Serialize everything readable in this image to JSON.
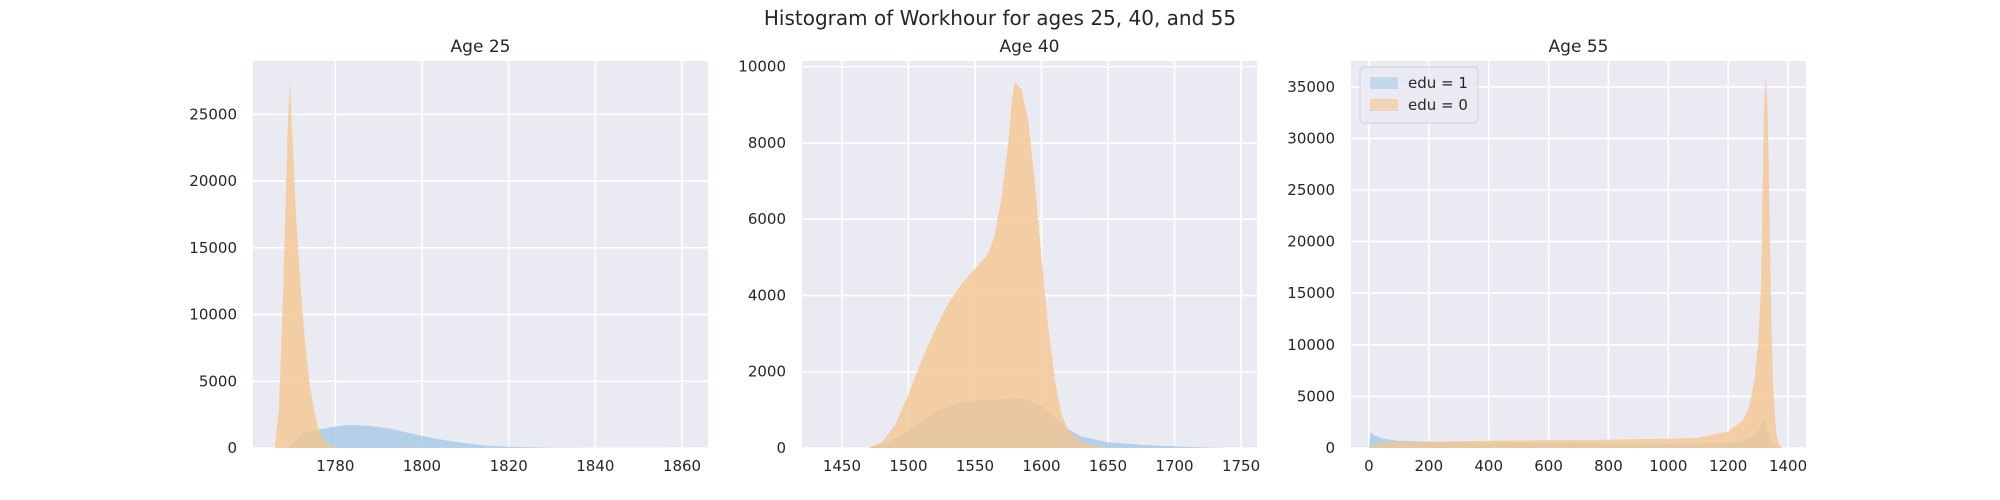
{
  "figure": {
    "title": "Histogram of Workhour for ages 25, 40, and 55"
  },
  "colors": {
    "background": "#eaeaf2",
    "grid": "#ffffff",
    "edu1": "#a9cbe6",
    "edu0": "#f5c58e"
  },
  "chart_data": [
    {
      "type": "area",
      "title": "Age 25",
      "xlabel": "",
      "ylabel": "",
      "xlim": [
        1761,
        1866
      ],
      "ylim": [
        0,
        29000
      ],
      "xticks": [
        1780,
        1800,
        1820,
        1840,
        1860
      ],
      "yticks": [
        0,
        5000,
        10000,
        15000,
        20000,
        25000
      ],
      "grid": true,
      "series": [
        {
          "name": "edu = 1",
          "x": [
            1769,
            1770,
            1771,
            1772,
            1773,
            1775,
            1778,
            1780,
            1782,
            1785,
            1788,
            1792,
            1796,
            1800,
            1805,
            1810,
            1815,
            1820,
            1830,
            1840,
            1850,
            1860
          ],
          "values": [
            0,
            200,
            600,
            1000,
            1200,
            1300,
            1500,
            1600,
            1700,
            1700,
            1650,
            1500,
            1200,
            900,
            600,
            350,
            180,
            90,
            30,
            10,
            5,
            0
          ]
        },
        {
          "name": "edu = 0",
          "x": [
            1766,
            1767,
            1768,
            1769,
            1769.5,
            1770,
            1771,
            1772,
            1773,
            1774,
            1775,
            1776,
            1777,
            1778,
            1780,
            1782
          ],
          "values": [
            0,
            3000,
            12000,
            24000,
            27500,
            24000,
            17000,
            12000,
            8000,
            5000,
            3000,
            1600,
            800,
            300,
            60,
            0
          ]
        }
      ]
    },
    {
      "type": "area",
      "title": "Age 40",
      "xlabel": "",
      "ylabel": "",
      "xlim": [
        1420,
        1762
      ],
      "ylim": [
        0,
        10150
      ],
      "xticks": [
        1450,
        1500,
        1550,
        1600,
        1650,
        1700,
        1750
      ],
      "yticks": [
        0,
        2000,
        4000,
        6000,
        8000,
        10000
      ],
      "grid": true,
      "series": [
        {
          "name": "edu = 1",
          "x": [
            1470,
            1485,
            1500,
            1510,
            1520,
            1530,
            1540,
            1550,
            1560,
            1570,
            1580,
            1590,
            1600,
            1610,
            1620,
            1630,
            1650,
            1680,
            1710,
            1740
          ],
          "values": [
            0,
            150,
            450,
            700,
            950,
            1100,
            1200,
            1250,
            1250,
            1280,
            1300,
            1250,
            1100,
            800,
            500,
            300,
            150,
            70,
            30,
            0
          ]
        },
        {
          "name": "edu = 0",
          "x": [
            1470,
            1480,
            1490,
            1500,
            1510,
            1520,
            1530,
            1540,
            1550,
            1560,
            1565,
            1570,
            1575,
            1578,
            1580,
            1585,
            1590,
            1595,
            1600,
            1605,
            1610,
            1615,
            1620,
            1630,
            1640,
            1650
          ],
          "values": [
            0,
            150,
            600,
            1400,
            2300,
            3100,
            3800,
            4300,
            4700,
            5100,
            5600,
            6600,
            8000,
            9200,
            9600,
            9400,
            8600,
            7000,
            5000,
            3200,
            1800,
            900,
            450,
            150,
            50,
            0
          ]
        }
      ]
    },
    {
      "type": "area",
      "title": "Age 55",
      "xlabel": "",
      "ylabel": "",
      "xlim": [
        -60,
        1460
      ],
      "ylim": [
        0,
        37500
      ],
      "xticks": [
        0,
        200,
        400,
        600,
        800,
        1000,
        1200,
        1400
      ],
      "yticks": [
        0,
        5000,
        10000,
        15000,
        20000,
        25000,
        30000,
        35000
      ],
      "grid": true,
      "legend": "upper-left",
      "series": [
        {
          "name": "edu = 1",
          "x": [
            0,
            5,
            20,
            50,
            100,
            200,
            400,
            600,
            800,
            1000,
            1100,
            1200,
            1250,
            1280,
            1300,
            1310,
            1320,
            1325,
            1330,
            1340,
            1350,
            1360,
            1370
          ],
          "values": [
            0,
            1500,
            1200,
            900,
            700,
            600,
            500,
            500,
            450,
            450,
            450,
            500,
            700,
            1000,
            1600,
            2300,
            2800,
            2600,
            1800,
            800,
            300,
            100,
            0
          ]
        },
        {
          "name": "edu = 0",
          "x": [
            0,
            20,
            50,
            100,
            200,
            400,
            600,
            800,
            1000,
            1100,
            1150,
            1200,
            1250,
            1270,
            1290,
            1300,
            1310,
            1315,
            1320,
            1325,
            1330,
            1335,
            1340,
            1345,
            1350,
            1360,
            1370,
            1380
          ],
          "values": [
            0,
            300,
            500,
            550,
            600,
            700,
            750,
            800,
            900,
            1000,
            1300,
            1600,
            2700,
            4000,
            7000,
            10000,
            16000,
            25000,
            33000,
            36000,
            34000,
            28000,
            19000,
            11000,
            6000,
            1500,
            300,
            0
          ]
        }
      ]
    }
  ]
}
